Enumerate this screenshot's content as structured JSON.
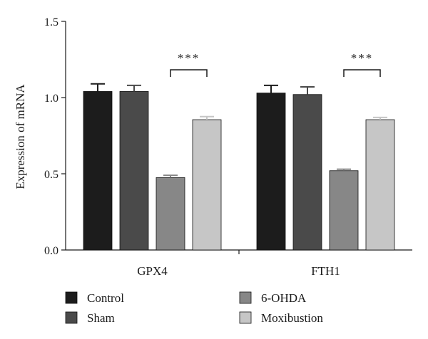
{
  "chart_data": {
    "type": "bar",
    "ylabel": "Expression of mRNA",
    "xlabel": "",
    "ylim": [
      0,
      1.5
    ],
    "yticks": [
      0.0,
      0.5,
      1.0,
      1.5
    ],
    "ytick_labels": [
      "0.0",
      "0.5",
      "1.0",
      "1.5"
    ],
    "categories": [
      "GPX4",
      "FTH1"
    ],
    "series": [
      {
        "name": "Control",
        "color": "#1c1c1c",
        "values": [
          1.04,
          1.03
        ],
        "errors": [
          0.05,
          0.05
        ]
      },
      {
        "name": "Sham",
        "color": "#4a4a4a",
        "values": [
          1.04,
          1.02
        ],
        "errors": [
          0.04,
          0.05
        ]
      },
      {
        "name": "6-OHDA",
        "color": "#878787",
        "values": [
          0.475,
          0.52
        ],
        "errors": [
          0.015,
          0.01
        ]
      },
      {
        "name": "Moxibustion",
        "color": "#c6c6c6",
        "values": [
          0.855,
          0.855
        ],
        "errors": [
          0.02,
          0.015
        ]
      }
    ],
    "annotations": [
      {
        "text": "***",
        "category": "GPX4"
      },
      {
        "text": "***",
        "category": "FTH1"
      }
    ],
    "grid": false,
    "legend_position": "bottom"
  }
}
